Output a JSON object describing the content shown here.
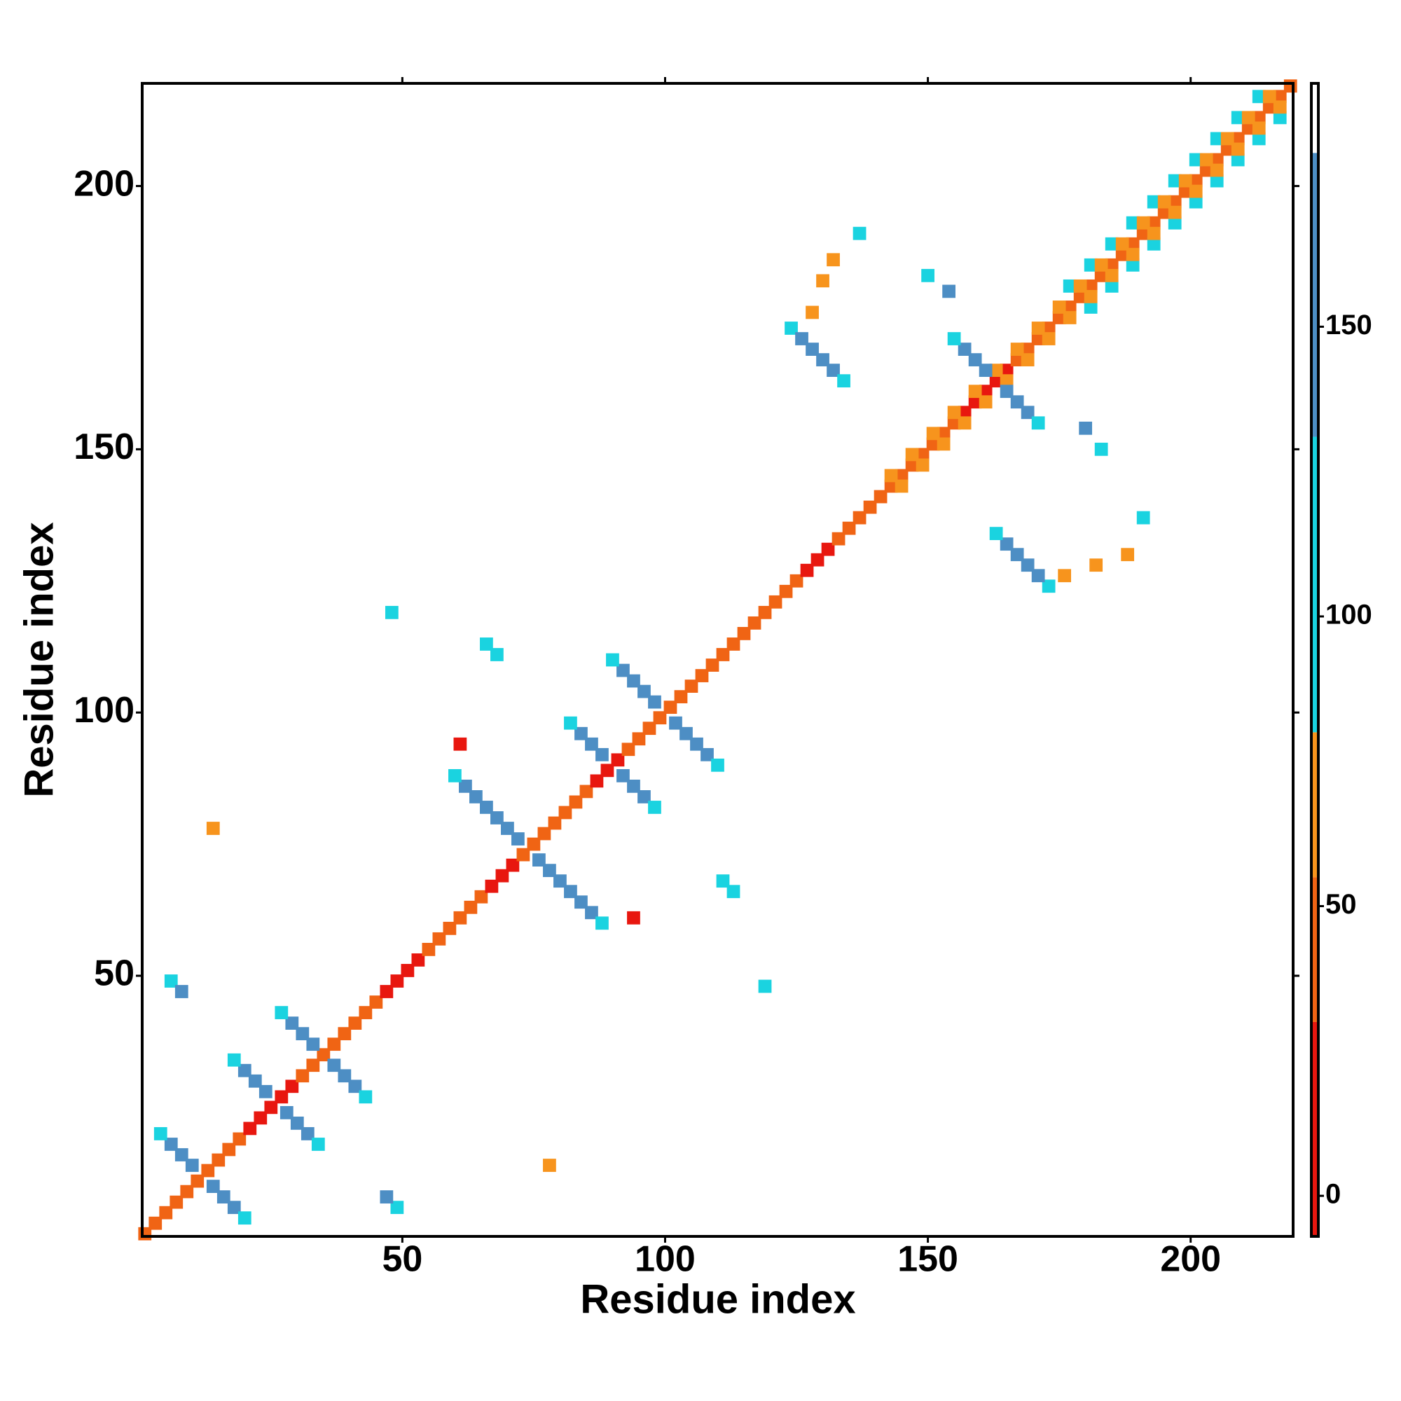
{
  "chart_data": {
    "type": "heatmap",
    "x_label": "Residue index",
    "y_label": "Residue index",
    "xlim": [
      0.5,
      219.5
    ],
    "ylim": [
      0.5,
      219.5
    ],
    "xticks": [
      50,
      100,
      150,
      200
    ],
    "yticks": [
      50,
      100,
      150,
      200
    ],
    "clim": [
      -7,
      192
    ],
    "cticks": [
      0,
      50,
      100,
      150
    ],
    "color_bounds": [
      30,
      55,
      80,
      131,
      180
    ],
    "colors": [
      "#e8170f",
      "#f06414",
      "#f7941d",
      "#1ad3e0",
      "#4d8ec4",
      "#ffffff"
    ],
    "x": [
      1,
      3,
      5,
      7,
      9,
      11,
      13,
      15,
      17,
      19,
      21,
      23,
      25,
      27,
      29,
      31,
      33,
      35,
      37,
      39,
      41,
      43,
      45,
      47,
      49,
      51,
      53,
      55,
      57,
      59,
      61,
      63,
      65,
      67,
      69,
      71,
      73,
      75,
      77,
      79,
      81,
      83,
      85,
      87,
      89,
      91,
      93,
      95,
      97,
      99,
      101,
      103,
      105,
      107,
      109,
      111,
      113,
      115,
      117,
      119,
      121,
      123,
      125,
      127,
      129,
      131,
      133,
      135,
      137,
      139,
      141,
      143,
      145,
      147,
      149,
      151,
      153,
      155,
      157,
      159,
      161,
      163,
      165,
      167,
      169,
      171,
      173,
      175,
      177,
      179,
      181,
      183,
      185,
      187,
      189,
      191,
      193,
      195,
      197,
      199,
      201,
      203,
      205,
      207,
      209,
      211,
      213,
      215,
      217,
      219,
      181,
      177,
      185,
      181,
      189,
      185,
      193,
      189,
      197,
      193,
      201,
      197,
      205,
      201,
      209,
      205,
      213,
      209,
      217,
      213,
      145,
      143,
      149,
      147,
      153,
      151,
      157,
      155,
      161,
      159,
      165,
      163,
      169,
      167,
      173,
      171,
      177,
      175,
      181,
      179,
      185,
      183,
      189,
      187,
      193,
      191,
      197,
      195,
      201,
      199,
      205,
      203,
      209,
      207,
      213,
      211,
      217,
      215,
      10,
      14,
      8,
      16,
      6,
      18,
      4,
      20,
      24,
      28,
      22,
      30,
      20,
      32,
      18,
      34,
      33,
      37,
      31,
      39,
      29,
      41,
      27,
      43,
      72,
      76,
      70,
      78,
      68,
      80,
      66,
      82,
      64,
      84,
      62,
      86,
      60,
      88,
      88,
      92,
      86,
      94,
      84,
      96,
      82,
      98,
      98,
      102,
      96,
      104,
      94,
      106,
      92,
      108,
      90,
      110,
      161,
      165,
      159,
      167,
      157,
      169,
      155,
      171,
      124,
      126,
      128,
      130,
      132,
      134,
      173,
      171,
      169,
      167,
      165,
      163,
      6,
      8,
      49,
      47,
      66,
      68,
      113,
      111,
      48,
      119,
      14,
      78,
      61,
      94,
      128,
      130,
      132,
      176,
      182,
      188,
      137,
      191,
      150,
      154,
      183,
      180
    ],
    "y": [
      1,
      3,
      5,
      7,
      9,
      11,
      13,
      15,
      17,
      19,
      21,
      23,
      25,
      27,
      29,
      31,
      33,
      35,
      37,
      39,
      41,
      43,
      45,
      47,
      49,
      51,
      53,
      55,
      57,
      59,
      61,
      63,
      65,
      67,
      69,
      71,
      73,
      75,
      77,
      79,
      81,
      83,
      85,
      87,
      89,
      91,
      93,
      95,
      97,
      99,
      101,
      103,
      105,
      107,
      109,
      111,
      113,
      115,
      117,
      119,
      121,
      123,
      125,
      127,
      129,
      131,
      133,
      135,
      137,
      139,
      141,
      143,
      145,
      147,
      149,
      151,
      153,
      155,
      157,
      159,
      161,
      163,
      165,
      167,
      169,
      171,
      173,
      175,
      177,
      179,
      181,
      183,
      185,
      187,
      189,
      191,
      193,
      195,
      197,
      199,
      201,
      203,
      205,
      207,
      209,
      211,
      213,
      215,
      217,
      219,
      177,
      181,
      181,
      185,
      185,
      189,
      189,
      193,
      193,
      197,
      197,
      201,
      201,
      205,
      205,
      209,
      209,
      213,
      213,
      217,
      143,
      145,
      147,
      149,
      151,
      153,
      155,
      157,
      159,
      161,
      163,
      165,
      167,
      169,
      171,
      173,
      175,
      177,
      179,
      181,
      183,
      185,
      187,
      189,
      191,
      193,
      195,
      197,
      199,
      201,
      203,
      205,
      207,
      209,
      211,
      213,
      215,
      217,
      14,
      10,
      16,
      8,
      18,
      6,
      20,
      4,
      28,
      24,
      30,
      22,
      32,
      20,
      34,
      18,
      37,
      33,
      39,
      31,
      41,
      29,
      43,
      27,
      76,
      72,
      78,
      70,
      80,
      68,
      82,
      66,
      84,
      64,
      86,
      62,
      88,
      60,
      92,
      88,
      94,
      86,
      96,
      84,
      98,
      82,
      102,
      98,
      104,
      96,
      106,
      94,
      108,
      92,
      110,
      90,
      165,
      161,
      167,
      159,
      169,
      157,
      171,
      155,
      173,
      171,
      169,
      167,
      165,
      163,
      124,
      126,
      128,
      130,
      132,
      134,
      49,
      47,
      6,
      8,
      113,
      111,
      66,
      68,
      119,
      48,
      78,
      14,
      94,
      61,
      176,
      182,
      186,
      126,
      128,
      130,
      191,
      137,
      183,
      180,
      150,
      154
    ],
    "values": [
      50,
      50,
      50,
      50,
      50,
      50,
      50,
      50,
      50,
      50,
      10,
      10,
      10,
      10,
      10,
      50,
      50,
      50,
      50,
      50,
      50,
      50,
      50,
      10,
      10,
      10,
      10,
      50,
      50,
      50,
      50,
      50,
      50,
      10,
      10,
      10,
      50,
      50,
      50,
      50,
      50,
      50,
      50,
      10,
      10,
      10,
      50,
      50,
      50,
      50,
      50,
      50,
      50,
      50,
      50,
      50,
      50,
      50,
      50,
      50,
      50,
      50,
      50,
      10,
      10,
      10,
      50,
      50,
      50,
      50,
      50,
      50,
      50,
      50,
      50,
      50,
      50,
      50,
      10,
      10,
      10,
      10,
      10,
      50,
      50,
      50,
      50,
      50,
      50,
      50,
      50,
      50,
      50,
      50,
      50,
      50,
      50,
      50,
      50,
      50,
      50,
      50,
      50,
      50,
      50,
      50,
      50,
      50,
      50,
      50,
      100,
      100,
      100,
      100,
      100,
      100,
      100,
      100,
      100,
      100,
      100,
      100,
      100,
      100,
      100,
      100,
      100,
      100,
      100,
      100,
      55,
      55,
      55,
      55,
      55,
      55,
      55,
      55,
      55,
      55,
      55,
      55,
      55,
      55,
      55,
      55,
      55,
      55,
      55,
      55,
      55,
      55,
      55,
      55,
      55,
      55,
      55,
      55,
      55,
      55,
      55,
      55,
      55,
      55,
      55,
      55,
      55,
      55,
      145,
      145,
      145,
      145,
      145,
      145,
      100,
      100,
      145,
      145,
      145,
      145,
      145,
      145,
      100,
      100,
      145,
      145,
      145,
      145,
      145,
      145,
      100,
      100,
      145,
      145,
      145,
      145,
      145,
      145,
      145,
      145,
      145,
      145,
      145,
      145,
      100,
      100,
      145,
      145,
      145,
      145,
      145,
      145,
      100,
      100,
      145,
      145,
      145,
      145,
      145,
      145,
      145,
      145,
      100,
      100,
      145,
      145,
      145,
      145,
      145,
      145,
      100,
      100,
      100,
      145,
      145,
      145,
      145,
      100,
      100,
      145,
      145,
      145,
      145,
      100,
      100,
      145,
      100,
      145,
      100,
      100,
      100,
      100,
      100,
      100,
      55,
      55,
      10,
      10,
      55,
      55,
      55,
      55,
      55,
      55,
      100,
      100,
      100,
      145,
      100,
      145
    ]
  }
}
